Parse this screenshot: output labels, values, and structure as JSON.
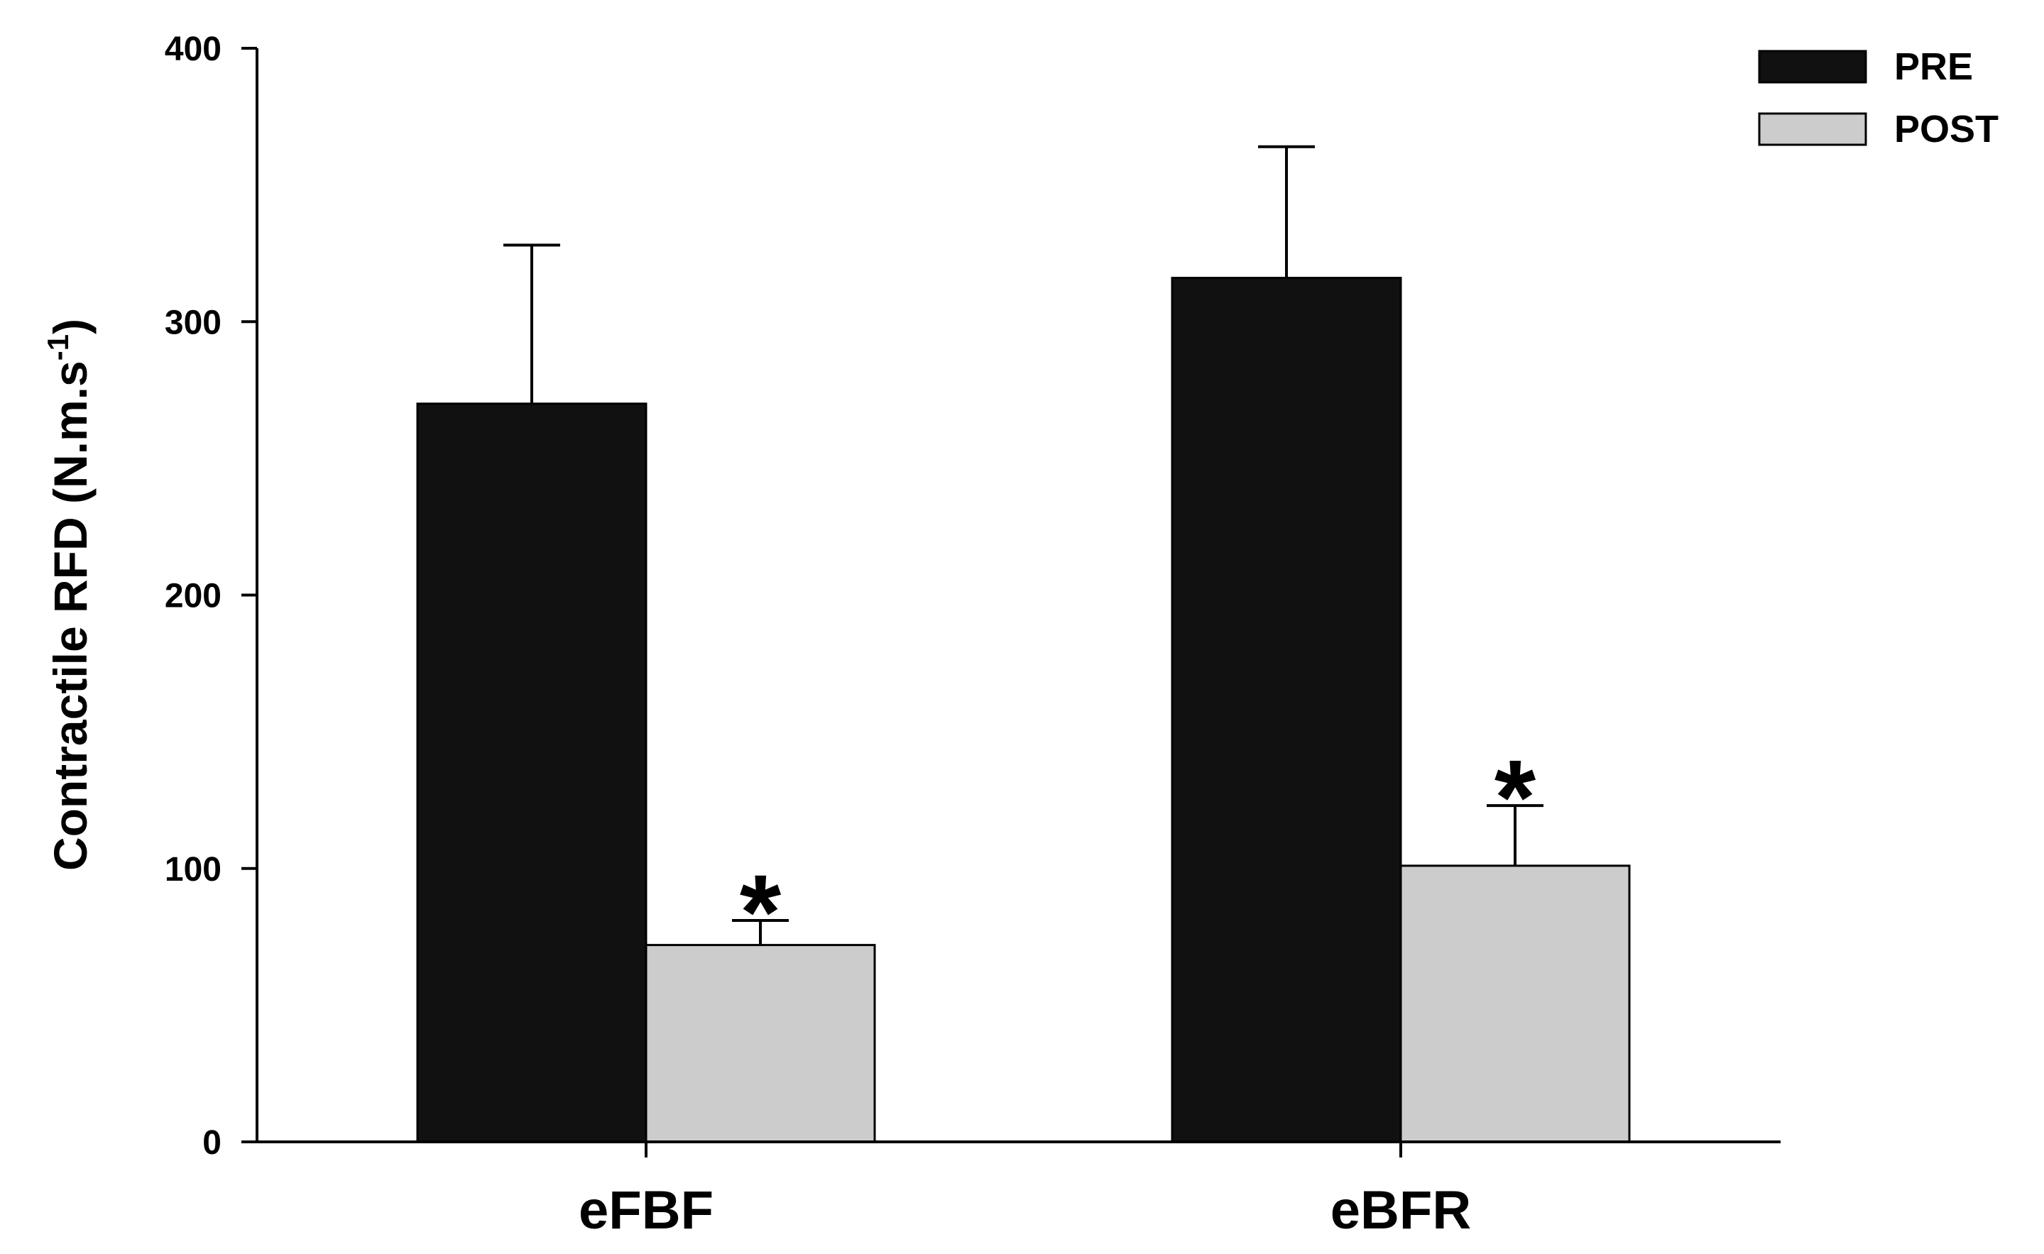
{
  "chart_data": {
    "type": "bar",
    "categories": [
      "eFBF",
      "eBFR"
    ],
    "series": [
      {
        "name": "PRE",
        "values": [
          270,
          316
        ],
        "errors": [
          58,
          48
        ],
        "color": "#111111"
      },
      {
        "name": "POST",
        "values": [
          72,
          101
        ],
        "errors": [
          9,
          22
        ],
        "color": "#cccccc"
      }
    ],
    "significance": [
      [
        "",
        "*"
      ],
      [
        "",
        "*"
      ]
    ],
    "ylabel": {
      "main": "Contractile RFD (N.m.s",
      "superscript": "-1",
      "close": ")"
    },
    "xlabel": "",
    "ylim": [
      0,
      400
    ],
    "yticks": [
      "0",
      "100",
      "200",
      "300",
      "400"
    ],
    "legend": {
      "placement": "top-right"
    },
    "grid": false
  }
}
